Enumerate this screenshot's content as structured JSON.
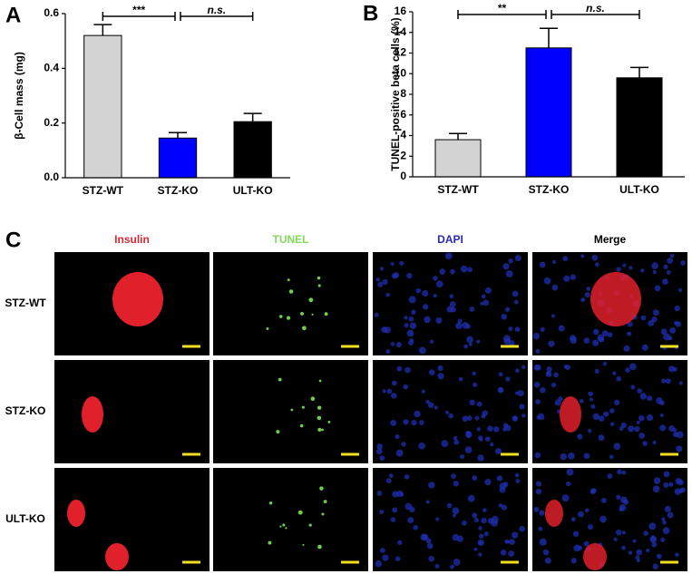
{
  "chart_data": [
    {
      "type": "bar",
      "panel": "A",
      "ylabel": "β-Cell mass (mg)",
      "categories": [
        "STZ-WT",
        "STZ-KO",
        "ULT-KO"
      ],
      "values": [
        0.52,
        0.145,
        0.205
      ],
      "errors": [
        0.04,
        0.02,
        0.03
      ],
      "colors": [
        "#d3d3d3",
        "#0000ff",
        "#000000"
      ],
      "ylim": [
        0,
        0.6
      ],
      "yticks": [
        {
          "value": 0,
          "label": "0.0"
        },
        0.2,
        0.4,
        0.6
      ],
      "annotations": [
        {
          "text": "***",
          "between": [
            "STZ-WT",
            "STZ-KO"
          ],
          "style": "normal"
        },
        {
          "text": "n.s.",
          "between": [
            "STZ-KO",
            "ULT-KO"
          ],
          "style": "italic"
        }
      ]
    },
    {
      "type": "bar",
      "panel": "B",
      "ylabel": "TUNEL-positive beta cells (%)",
      "categories": [
        "STZ-WT",
        "STZ-KO",
        "ULT-KO"
      ],
      "values": [
        3.6,
        12.5,
        9.6
      ],
      "errors": [
        0.6,
        1.9,
        1.0
      ],
      "colors": [
        "#d3d3d3",
        "#0000ff",
        "#000000"
      ],
      "ylim": [
        0,
        16
      ],
      "yticks": [
        0,
        2,
        4,
        6,
        8,
        10,
        12,
        14,
        16
      ],
      "annotations": [
        {
          "text": "**",
          "between": [
            "STZ-WT",
            "STZ-KO"
          ],
          "style": "normal"
        },
        {
          "text": "n.s.",
          "between": [
            "STZ-KO",
            "ULT-KO"
          ],
          "style": "italic"
        }
      ]
    }
  ],
  "panel_c": {
    "panel": "C",
    "columns": [
      {
        "label": "Insulin",
        "color": "#d42a34"
      },
      {
        "label": "TUNEL",
        "color": "#86d95a"
      },
      {
        "label": "DAPI",
        "color": "#2a2ab0"
      },
      {
        "label": "Merge",
        "color": "#000000"
      }
    ],
    "rows": [
      "STZ-WT",
      "STZ-KO",
      "ULT-KO"
    ]
  }
}
